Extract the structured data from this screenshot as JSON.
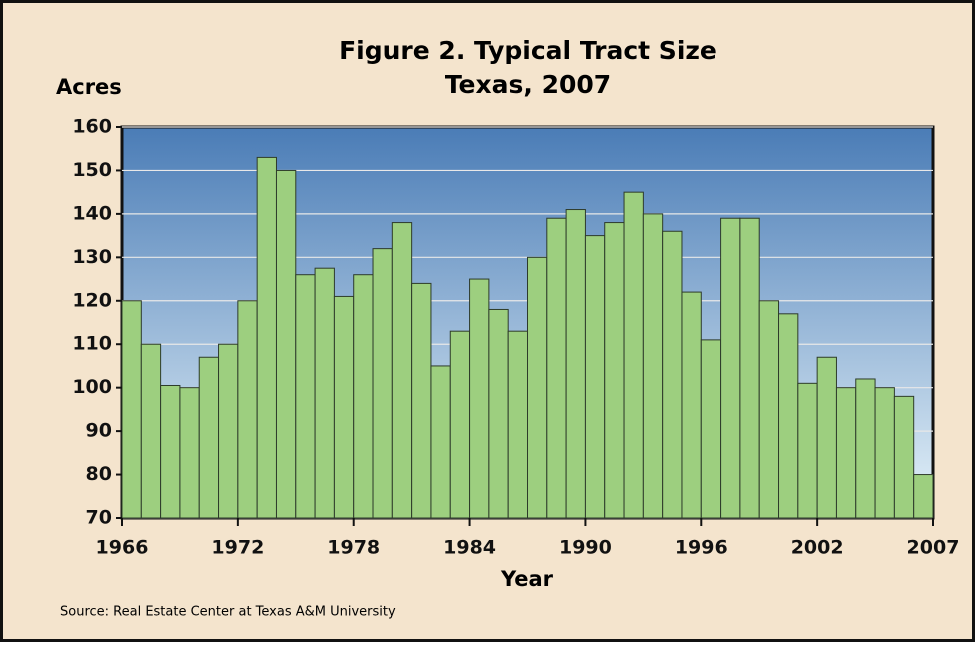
{
  "chart_data": {
    "type": "bar",
    "title": "Figure 2. Typical Tract Size",
    "subtitle": "Texas, 2007",
    "y_label": "Acres",
    "x_label": "Year",
    "source": "Source: Real Estate Center at Texas A&M University",
    "categories": [
      "1966",
      null,
      null,
      null,
      null,
      null,
      "1972",
      null,
      null,
      null,
      null,
      null,
      "1978",
      null,
      null,
      null,
      null,
      null,
      "1984",
      null,
      null,
      null,
      null,
      null,
      "1990",
      null,
      null,
      null,
      null,
      null,
      "1996",
      null,
      null,
      null,
      null,
      null,
      "2002",
      null,
      null,
      null,
      null,
      "2007"
    ],
    "values": [
      120,
      110,
      100.5,
      100,
      107,
      110,
      120,
      153,
      150,
      126,
      127.5,
      121,
      126,
      132,
      138,
      124,
      105,
      113,
      125,
      118,
      113,
      130,
      139,
      141,
      135,
      138,
      145,
      140,
      136,
      122,
      111,
      139,
      139,
      120,
      117,
      101,
      107,
      100,
      102,
      100,
      98,
      80
    ],
    "color": "#9dcf7f",
    "ylim": [
      70,
      160
    ],
    "yticks": [
      70,
      80,
      90,
      100,
      110,
      120,
      130,
      140,
      150,
      160
    ],
    "grid": true
  }
}
